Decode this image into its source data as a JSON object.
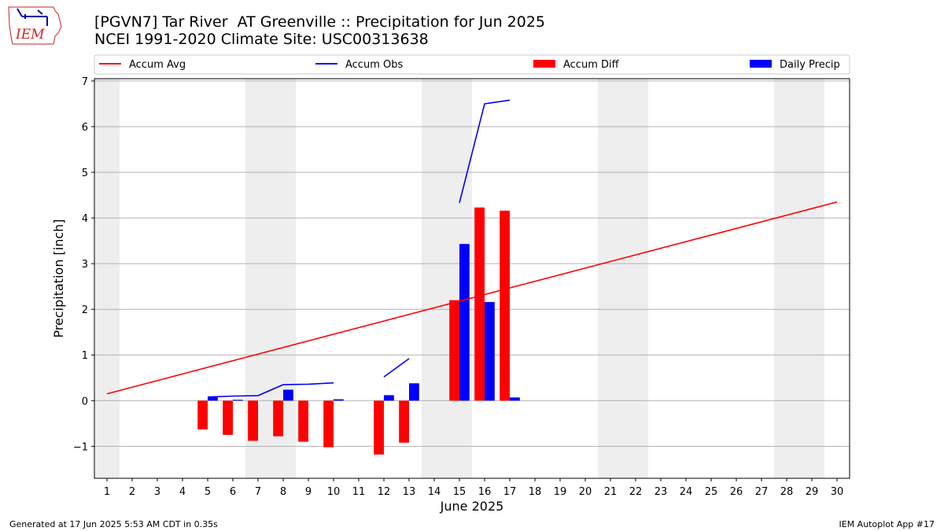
{
  "header": {
    "title_line1": "[PGVN7] Tar River  AT Greenville :: Precipitation for Jun 2025",
    "title_line2": "NCEI 1991-2020 Climate Site: USC00313638",
    "logo_text": "IEM"
  },
  "footer": {
    "left": "Generated at 17 Jun 2025 5:53 AM CDT in 0.35s",
    "right": "IEM Autoplot App #17"
  },
  "colors": {
    "accum_avg": "#ff0000",
    "accum_obs": "#0000ff",
    "accum_diff": "#ff0000",
    "daily_precip": "#0000ff",
    "weekend_band": "#eeeeee",
    "grid": "#b0b0b0"
  },
  "chart_data": {
    "type": "bar",
    "xlabel": "June 2025",
    "ylabel": "Precipitation [inch]",
    "xlim": [
      0.5,
      30.5
    ],
    "ylim": [
      -1.7,
      7.05
    ],
    "x_ticks": [
      1,
      2,
      3,
      4,
      5,
      6,
      7,
      8,
      9,
      10,
      11,
      12,
      13,
      14,
      15,
      16,
      17,
      18,
      19,
      20,
      21,
      22,
      23,
      24,
      25,
      26,
      27,
      28,
      29,
      30
    ],
    "y_ticks": [
      -1,
      0,
      1,
      2,
      3,
      4,
      5,
      6,
      7
    ],
    "y_tick_labels": [
      "−1",
      "0",
      "1",
      "2",
      "3",
      "4",
      "5",
      "6",
      "7"
    ],
    "grid": "horizontal",
    "legend_placement": "top",
    "legend": [
      "Accum Avg",
      "Accum Obs",
      "Accum Diff",
      "Daily Precip"
    ],
    "weekend_days": [
      1,
      7,
      8,
      14,
      15,
      21,
      22,
      28,
      29
    ],
    "accum_avg": {
      "start": [
        1,
        0.15
      ],
      "end": [
        30,
        4.35
      ]
    },
    "accum_obs_segments": [
      [
        [
          5,
          0.08
        ],
        [
          6,
          0.1
        ],
        [
          7,
          0.11
        ],
        [
          8,
          0.35
        ],
        [
          9,
          0.36
        ],
        [
          10,
          0.39
        ]
      ],
      [
        [
          12,
          0.52
        ],
        [
          13,
          0.92
        ]
      ],
      [
        [
          15,
          4.33
        ],
        [
          16,
          6.5
        ],
        [
          17,
          6.58
        ]
      ]
    ],
    "accum_diff": [
      [
        5,
        -0.63
      ],
      [
        6,
        -0.75
      ],
      [
        7,
        -0.88
      ],
      [
        8,
        -0.78
      ],
      [
        9,
        -0.9
      ],
      [
        10,
        -1.02
      ],
      [
        12,
        -1.18
      ],
      [
        13,
        -0.92
      ],
      [
        15,
        2.2
      ],
      [
        16,
        4.23
      ],
      [
        17,
        4.16
      ]
    ],
    "daily_precip": [
      [
        5,
        0.08
      ],
      [
        6,
        0.02
      ],
      [
        8,
        0.24
      ],
      [
        10,
        0.03
      ],
      [
        12,
        0.12
      ],
      [
        13,
        0.38
      ],
      [
        15,
        3.43
      ],
      [
        16,
        2.16
      ],
      [
        17,
        0.07
      ]
    ]
  }
}
